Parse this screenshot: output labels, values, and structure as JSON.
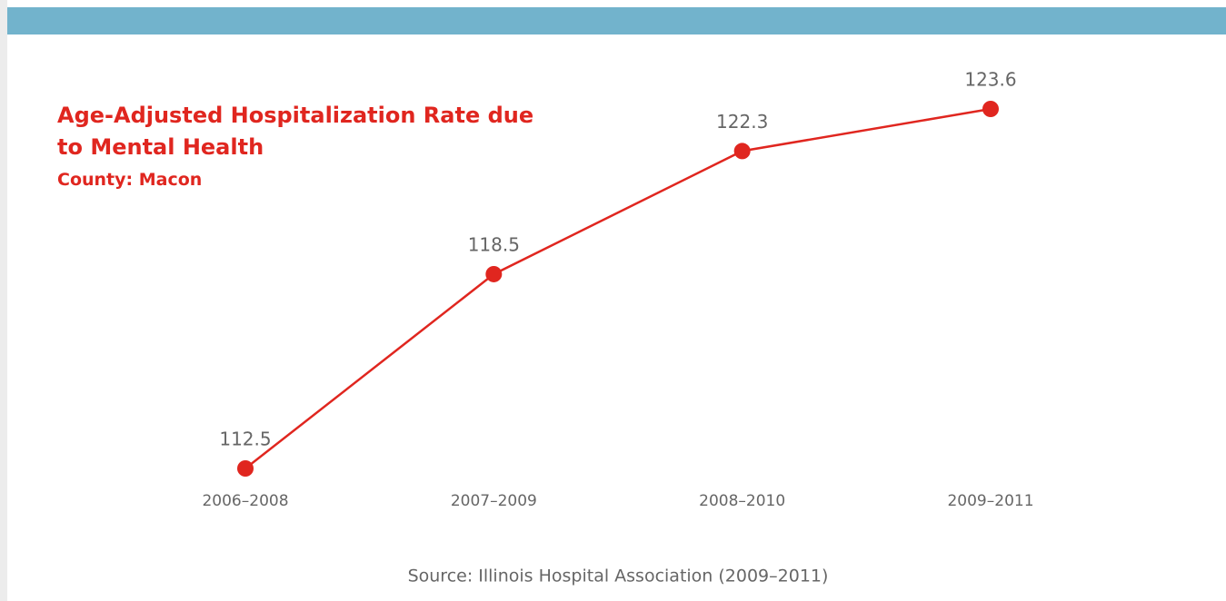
{
  "chart_data": {
    "type": "line",
    "title": "Age-Adjusted Hospitalization Rate due to Mental Health",
    "subtitle": "County: Macon",
    "source": "Source: Illinois Hospital Association (2009–2011)",
    "categories": [
      "2006–2008",
      "2007–2009",
      "2008–2010",
      "2009–2011"
    ],
    "values": [
      112.5,
      118.5,
      122.3,
      123.6
    ],
    "color": "#e0261f"
  }
}
